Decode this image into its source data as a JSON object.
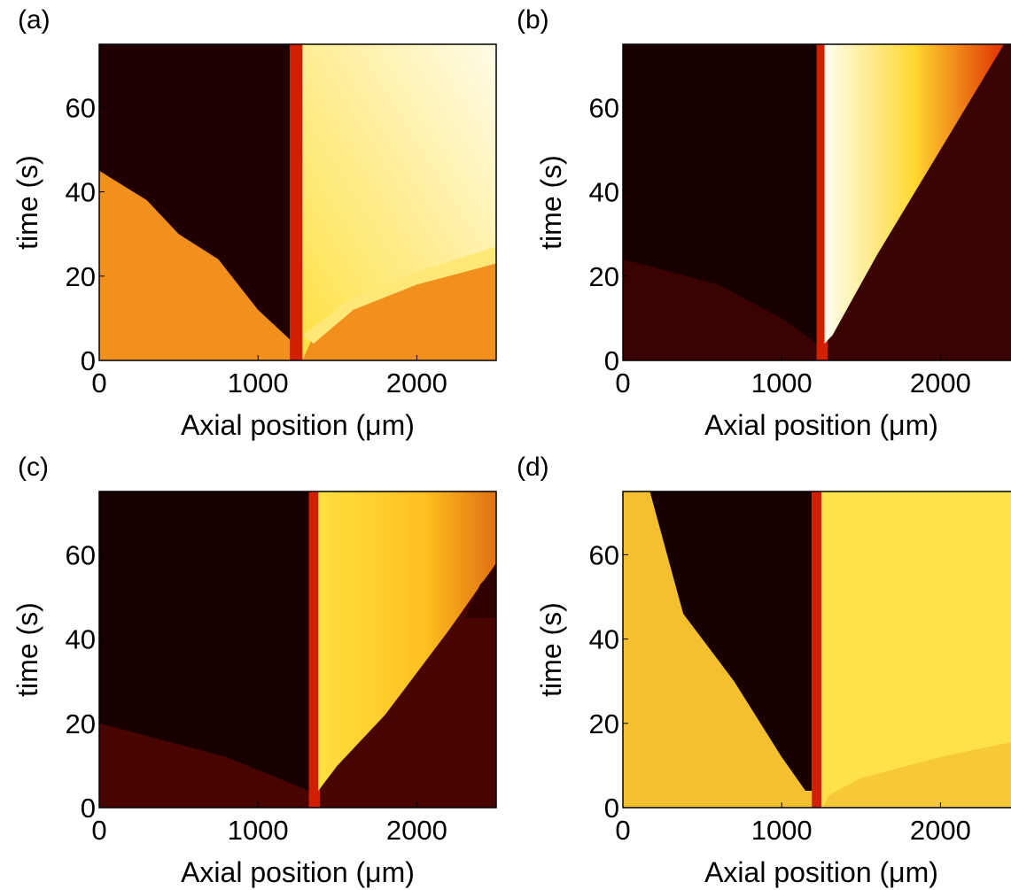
{
  "chart_data": [
    {
      "type": "heatmap",
      "panel_label": "(a)",
      "x_label": "Axial position (μm)",
      "y_label": "time (s)",
      "xlim": [
        0,
        2500
      ],
      "ylim": [
        0,
        75
      ],
      "xticks": [
        0,
        1000,
        2000
      ],
      "yticks": [
        0,
        20,
        40,
        60
      ]
    },
    {
      "type": "heatmap",
      "panel_label": "(b)",
      "x_label": "Axial position (μm)",
      "y_label": "time (s)",
      "xlim": [
        0,
        2500
      ],
      "ylim": [
        0,
        75
      ],
      "xticks": [
        0,
        1000,
        2000
      ],
      "yticks": [
        0,
        20,
        40,
        60
      ]
    },
    {
      "type": "heatmap",
      "panel_label": "(c)",
      "x_label": "Axial position (μm)",
      "y_label": "time (s)",
      "xlim": [
        0,
        2500
      ],
      "ylim": [
        0,
        75
      ],
      "xticks": [
        0,
        1000,
        2000
      ],
      "yticks": [
        0,
        20,
        40,
        60
      ]
    },
    {
      "type": "heatmap",
      "panel_label": "(d)",
      "x_label": "Axial position (μm)",
      "y_label": "time (s)",
      "xlim": [
        0,
        2500
      ],
      "ylim": [
        0,
        75
      ],
      "xticks": [
        0,
        1000,
        2000
      ],
      "yticks": [
        0,
        20,
        40,
        60
      ]
    }
  ]
}
